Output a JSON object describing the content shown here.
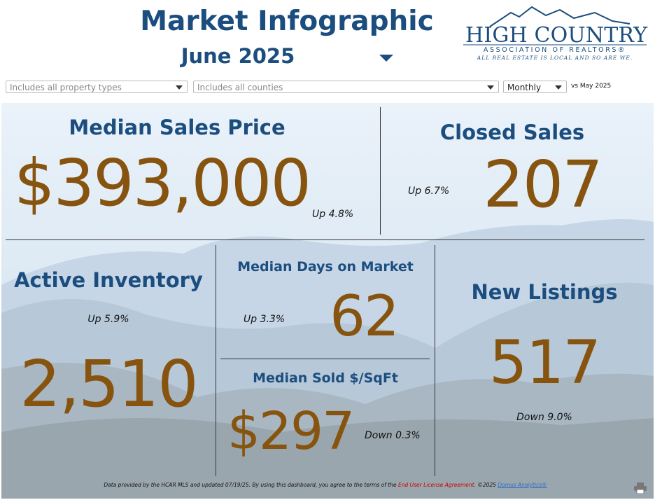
{
  "header": {
    "title": "Market Infographic",
    "period": "June 2025",
    "logo": {
      "name": "HIGH COUNTRY",
      "subtitle": "ASSOCIATION OF REALTORS®",
      "tagline": "ALL REAL ESTATE IS LOCAL AND SO ARE WE."
    }
  },
  "filters": {
    "property_type": "Includes all property types",
    "county": "Includes all counties",
    "frequency": "Monthly",
    "comparison": "vs May 2025"
  },
  "metrics": {
    "median_sales_price": {
      "label": "Median Sales Price",
      "value": "$393,000",
      "change": "Up 4.8%"
    },
    "closed_sales": {
      "label": "Closed Sales",
      "value": "207",
      "change": "Up 6.7%"
    },
    "active_inventory": {
      "label": "Active Inventory",
      "value": "2,510",
      "change": "Up 5.9%"
    },
    "median_days_on_market": {
      "label": "Median Days on Market",
      "value": "62",
      "change": "Up 3.3%"
    },
    "median_sold_per_sqft": {
      "label": "Median Sold $/SqFt",
      "value": "$297",
      "change": "Down 0.3%"
    },
    "new_listings": {
      "label": "New Listings",
      "value": "517",
      "change": "Down 9.0%"
    }
  },
  "footer": {
    "text": "Data provided by the HCAR MLS and updated 07/19/25.  By using this dashboard, you agree to the terms of the",
    "license_link": "End User License Agreement",
    "copyright": ".  ©2025",
    "vendor_link": "Domus Analytics®"
  }
}
